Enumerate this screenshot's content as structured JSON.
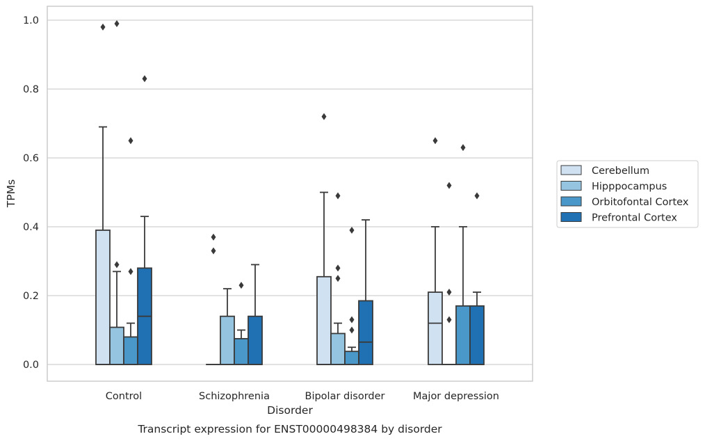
{
  "caption": "Transcript expression for ENST00000498384 by disorder",
  "chart_data": {
    "type": "box",
    "xlabel": "Disorder",
    "ylabel": "TPMs",
    "ylim": [
      -0.05,
      1.04
    ],
    "yticks": [
      "0.0",
      "0.2",
      "0.4",
      "0.6",
      "0.8",
      "1.0"
    ],
    "grid": "horizontal",
    "legend_position": "right",
    "categories": [
      "Control",
      "Schizophrenia",
      "Bipolar disorder",
      "Major depression"
    ],
    "series": [
      {
        "name": "Cerebellum",
        "color": "#d0e1f2",
        "boxes": [
          {
            "q1": 0.0,
            "median": 0.0,
            "q3": 0.39,
            "whisker_low": 0.0,
            "whisker_high": 0.69,
            "outliers": [
              0.98
            ]
          },
          {
            "q1": 0.0,
            "median": 0.0,
            "q3": 0.0,
            "whisker_low": 0.0,
            "whisker_high": 0.0,
            "outliers": [
              0.33,
              0.37
            ]
          },
          {
            "q1": 0.0,
            "median": 0.0,
            "q3": 0.255,
            "whisker_low": 0.0,
            "whisker_high": 0.5,
            "outliers": [
              0.72
            ]
          },
          {
            "q1": 0.0,
            "median": 0.12,
            "q3": 0.21,
            "whisker_low": 0.0,
            "whisker_high": 0.4,
            "outliers": [
              0.65
            ]
          }
        ]
      },
      {
        "name": "Hipppocampus",
        "color": "#94c4df",
        "boxes": [
          {
            "q1": 0.0,
            "median": 0.0,
            "q3": 0.108,
            "whisker_low": 0.0,
            "whisker_high": 0.27,
            "outliers": [
              0.29,
              0.99
            ]
          },
          {
            "q1": 0.0,
            "median": 0.0,
            "q3": 0.14,
            "whisker_low": 0.0,
            "whisker_high": 0.22,
            "outliers": []
          },
          {
            "q1": 0.0,
            "median": 0.0,
            "q3": 0.09,
            "whisker_low": 0.0,
            "whisker_high": 0.12,
            "outliers": [
              0.25,
              0.28,
              0.49
            ]
          },
          {
            "q1": 0.0,
            "median": 0.0,
            "q3": 0.0,
            "whisker_low": 0.0,
            "whisker_high": 0.0,
            "outliers": [
              0.13,
              0.21,
              0.52
            ]
          }
        ]
      },
      {
        "name": "Orbitofontal Cortex",
        "color": "#4a98c9",
        "boxes": [
          {
            "q1": 0.0,
            "median": 0.0,
            "q3": 0.08,
            "whisker_low": 0.0,
            "whisker_high": 0.12,
            "outliers": [
              0.27,
              0.65
            ]
          },
          {
            "q1": 0.0,
            "median": 0.0,
            "q3": 0.075,
            "whisker_low": 0.0,
            "whisker_high": 0.1,
            "outliers": [
              0.23
            ]
          },
          {
            "q1": 0.0,
            "median": 0.0,
            "q3": 0.038,
            "whisker_low": 0.0,
            "whisker_high": 0.05,
            "outliers": [
              0.1,
              0.13,
              0.39
            ]
          },
          {
            "q1": 0.0,
            "median": 0.0,
            "q3": 0.17,
            "whisker_low": 0.0,
            "whisker_high": 0.4,
            "outliers": [
              0.63
            ]
          }
        ]
      },
      {
        "name": "Prefrontal Cortex",
        "color": "#2070b4",
        "boxes": [
          {
            "q1": 0.0,
            "median": 0.14,
            "q3": 0.28,
            "whisker_low": 0.0,
            "whisker_high": 0.43,
            "outliers": [
              0.83
            ]
          },
          {
            "q1": 0.0,
            "median": 0.0,
            "q3": 0.14,
            "whisker_low": 0.0,
            "whisker_high": 0.29,
            "outliers": []
          },
          {
            "q1": 0.0,
            "median": 0.065,
            "q3": 0.185,
            "whisker_low": 0.0,
            "whisker_high": 0.42,
            "outliers": []
          },
          {
            "q1": 0.0,
            "median": 0.0,
            "q3": 0.17,
            "whisker_low": 0.0,
            "whisker_high": 0.21,
            "outliers": [
              0.49
            ]
          }
        ]
      }
    ],
    "colors": {
      "grid": "#d0d0d0",
      "spine": "#cccccc",
      "box_edge": "#3a3a3a"
    }
  }
}
